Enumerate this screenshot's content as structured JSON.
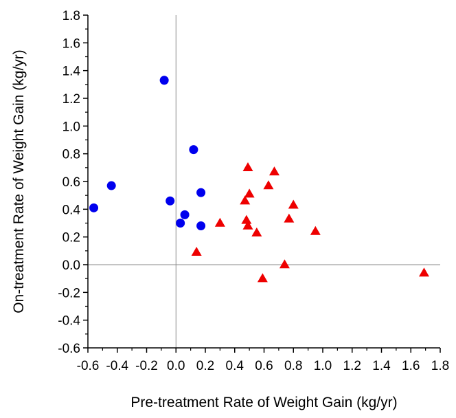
{
  "chart_data": {
    "type": "scatter",
    "xlabel": "Pre-treatment Rate of Weight Gain (kg/yr)",
    "ylabel": "On-treatment Rate of Weight Gain (kg/yr)",
    "xlim": [
      -0.6,
      1.8
    ],
    "ylim": [
      -0.6,
      1.8
    ],
    "x_ticks": [
      "-0.6",
      "-0.4",
      "-0.2",
      "0.0",
      "0.2",
      "0.4",
      "0.6",
      "0.8",
      "1.0",
      "1.2",
      "1.4",
      "1.6",
      "1.8"
    ],
    "y_ticks": [
      "1.8",
      "1.6",
      "1.4",
      "1.2",
      "1.0",
      "0.8",
      "0.6",
      "0.4",
      "0.2",
      "0.0",
      "-0.2",
      "-0.4",
      "-0.6"
    ],
    "reference_lines": {
      "x": 0,
      "y": 0
    },
    "grid": false,
    "series": [
      {
        "marker": "circle",
        "color": "#0000ee",
        "points": [
          [
            -0.08,
            1.33
          ],
          [
            -0.44,
            0.57
          ],
          [
            -0.56,
            0.41
          ],
          [
            -0.04,
            0.46
          ],
          [
            0.12,
            0.83
          ],
          [
            0.17,
            0.52
          ],
          [
            0.06,
            0.36
          ],
          [
            0.03,
            0.3
          ],
          [
            0.17,
            0.28
          ]
        ]
      },
      {
        "marker": "triangle",
        "color": "#ee0000",
        "points": [
          [
            0.49,
            0.7
          ],
          [
            0.67,
            0.67
          ],
          [
            0.63,
            0.57
          ],
          [
            0.5,
            0.51
          ],
          [
            0.47,
            0.46
          ],
          [
            0.8,
            0.43
          ],
          [
            0.77,
            0.33
          ],
          [
            0.48,
            0.32
          ],
          [
            0.3,
            0.3
          ],
          [
            0.49,
            0.28
          ],
          [
            0.55,
            0.23
          ],
          [
            0.95,
            0.24
          ],
          [
            0.14,
            0.09
          ],
          [
            0.74,
            0.0
          ],
          [
            0.59,
            -0.1
          ],
          [
            1.69,
            -0.06
          ]
        ]
      }
    ]
  }
}
